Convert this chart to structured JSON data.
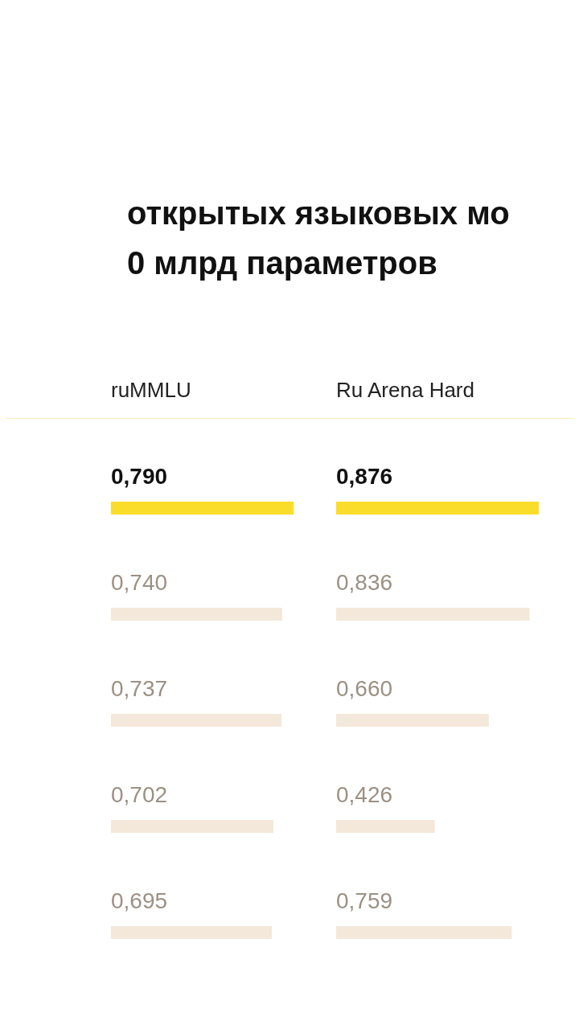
{
  "chart_data": [
    {
      "type": "bar",
      "orientation": "horizontal",
      "title": "открытых языковых мо\n0 млрд параметров",
      "xlabel": "ruMMLU",
      "categories": [
        null,
        null,
        null,
        null,
        null
      ],
      "values": [
        0.79,
        0.74,
        0.737,
        0.702,
        0.695
      ],
      "value_labels": [
        "0,790",
        "0,740",
        "0,737",
        "0,702",
        "0,695"
      ],
      "colors": [
        "#fadd2b",
        "#f4e8da",
        "#f4e8da",
        "#f4e8da",
        "#f4e8da"
      ],
      "tick_labels": false,
      "grid": false,
      "legend": false
    },
    {
      "type": "bar",
      "orientation": "horizontal",
      "xlabel": "Ru Arena Hard",
      "categories": [
        null,
        null,
        null,
        null,
        null
      ],
      "values": [
        0.876,
        0.836,
        0.66,
        0.426,
        0.759
      ],
      "value_labels": [
        "0,876",
        "0,836",
        "0,660",
        "0,426",
        "0,759"
      ],
      "colors": [
        "#fadd2b",
        "#f4e8da",
        "#f4e8da",
        "#f4e8da",
        "#f4e8da"
      ],
      "tick_labels": false,
      "grid": false,
      "legend": false
    }
  ]
}
